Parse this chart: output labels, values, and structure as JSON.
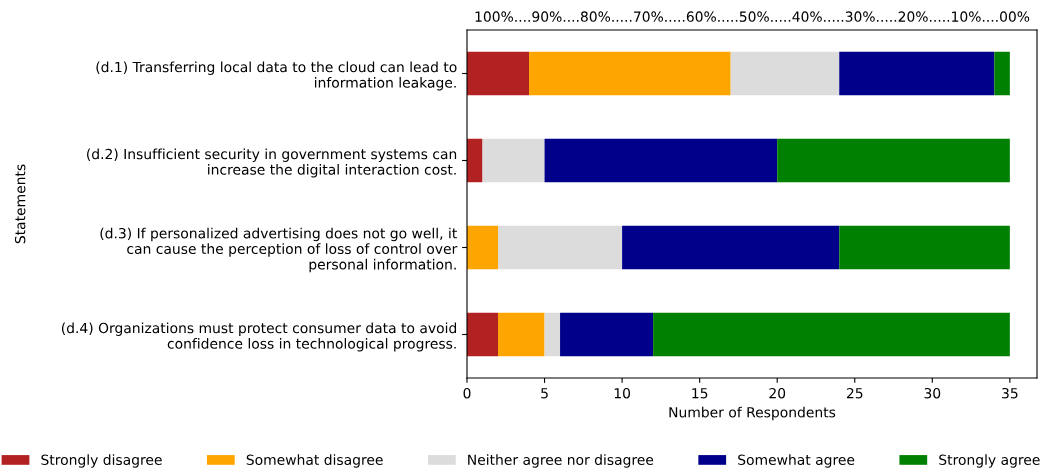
{
  "chart_data": {
    "type": "bar",
    "orientation": "horizontal",
    "stacked": true,
    "title": "100%....90%....80%.....70%.....60%.....50%.....40%.....30%.....20%.....10%....00%",
    "xlabel": "Number of Respondents",
    "ylabel": "Statements",
    "categories": [
      "(d.1) Transferring local data to the cloud can lead to\ninformation leakage.",
      "(d.2) Insufficient security in government systems can\nincrease the digital interaction cost.",
      "(d.3) If personalized advertising does not go well, it\ncan cause the perception of loss of control over\npersonal information.",
      "(d.4) Organizations must protect consumer data to avoid\nconfidence loss in technological progress."
    ],
    "series": [
      {
        "name": "Strongly disagree",
        "color": "#b22222",
        "values": [
          4,
          1,
          0,
          2
        ]
      },
      {
        "name": "Somewhat disagree",
        "color": "#ffa500",
        "values": [
          13,
          0,
          2,
          3
        ]
      },
      {
        "name": "Neither agree nor disagree",
        "color": "#dcdcdc",
        "values": [
          7,
          4,
          8,
          1
        ]
      },
      {
        "name": "Somewhat agree",
        "color": "#00008b",
        "values": [
          10,
          15,
          14,
          6
        ]
      },
      {
        "name": "Strongly agree",
        "color": "#008000",
        "values": [
          1,
          15,
          11,
          23
        ]
      }
    ],
    "xlim": [
      0,
      36.75
    ],
    "xticks": [
      0,
      5,
      10,
      15,
      20,
      25,
      30,
      35
    ],
    "grid": false,
    "legend": "bottom"
  }
}
